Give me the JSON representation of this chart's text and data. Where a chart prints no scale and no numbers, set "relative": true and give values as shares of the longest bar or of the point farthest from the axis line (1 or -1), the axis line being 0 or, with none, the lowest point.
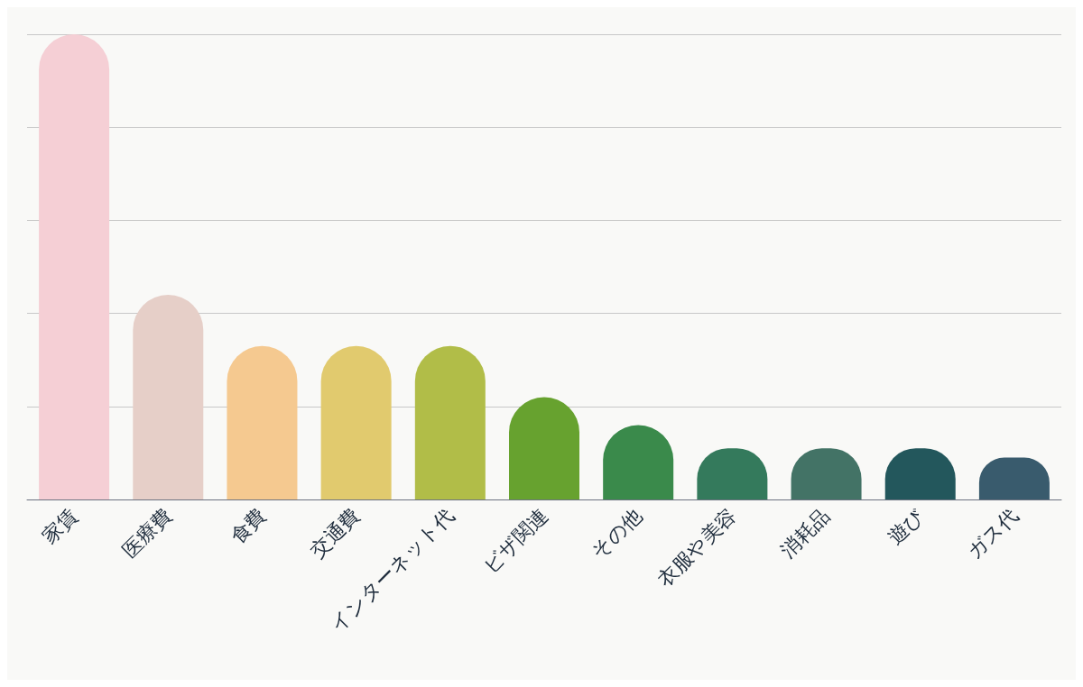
{
  "chart_data": {
    "type": "bar",
    "relative": true,
    "grid": "y",
    "categories": [
      "家賃",
      "医療費",
      "食費",
      "交通費",
      "インターネット代",
      "ビザ関連",
      "その他",
      "衣服や美容",
      "消耗品",
      "遊び",
      "ガス代"
    ],
    "values": [
      1,
      0.44,
      0.33,
      0.33,
      0.33,
      0.22,
      0.16,
      0.11,
      0.11,
      0.11,
      0.09
    ],
    "colors": [
      "#f5cfd5",
      "#e6cfc8",
      "#f5c990",
      "#e1ca6e",
      "#b1bd48",
      "#67a22f",
      "#3a8a4b",
      "#347a5c",
      "#437366",
      "#23575c",
      "#395b6d"
    ]
  }
}
